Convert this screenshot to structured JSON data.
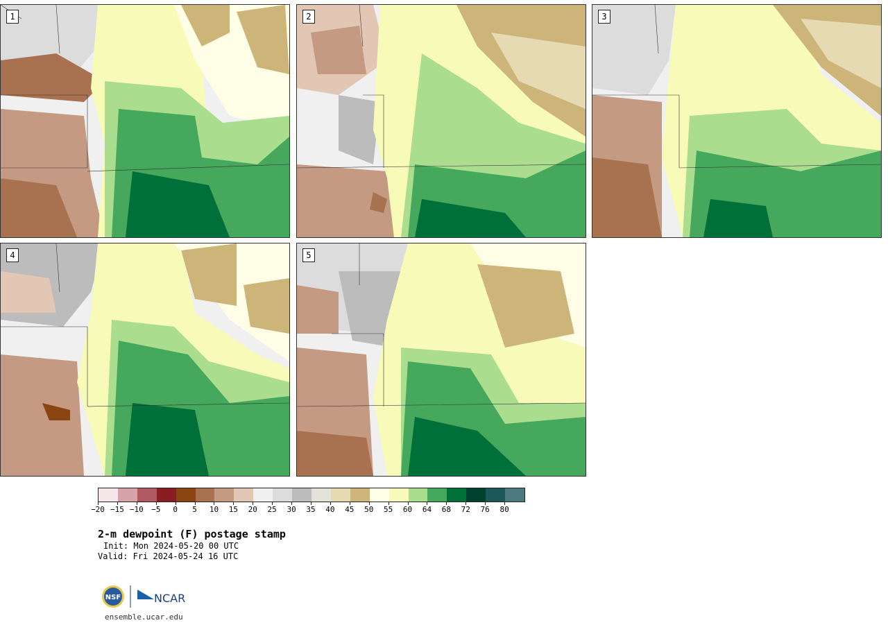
{
  "panels": [
    {
      "label": "1",
      "id": "member-1"
    },
    {
      "label": "2",
      "id": "member-2"
    },
    {
      "label": "3",
      "id": "member-3"
    },
    {
      "label": "4",
      "id": "member-4"
    },
    {
      "label": "5",
      "id": "member-5"
    }
  ],
  "colorbar": {
    "colors": [
      "#f6e8ea",
      "#d6a4a8",
      "#b05a62",
      "#8a1c24",
      "#8b4513",
      "#a87250",
      "#c49a82",
      "#e2c8b4",
      "#f0f0f0",
      "#dcdcdc",
      "#bcbcbc",
      "#e2e2d8",
      "#e6dab2",
      "#cdb478",
      "#fefee6",
      "#f8fab8",
      "#aade8e",
      "#46a85c",
      "#00703a",
      "#00422e",
      "#1c5858",
      "#4c7a7e"
    ],
    "tick_labels": [
      "−20",
      "−15",
      "−10",
      "−5",
      "0",
      "5",
      "10",
      "15",
      "20",
      "25",
      "30",
      "35",
      "40",
      "45",
      "50",
      "55",
      "60",
      "64",
      "68",
      "72",
      "76",
      "80"
    ]
  },
  "title": "2-m dewpoint (F) postage stamp",
  "init": "Init: Mon 2024-05-20 00 UTC",
  "valid": "Valid: Fri 2024-05-24 16 UTC",
  "logos": {
    "nsf": "NSF",
    "ncar": "NCAR"
  },
  "site": "ensemble.ucar.edu"
}
